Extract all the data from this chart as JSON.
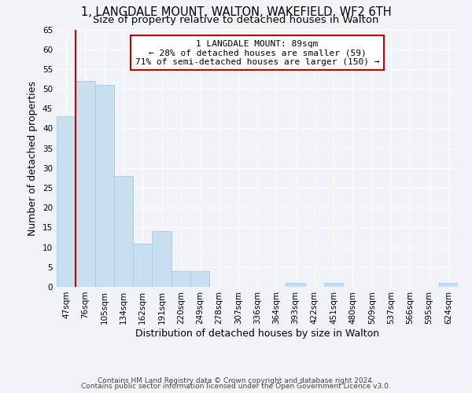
{
  "title": "1, LANGDALE MOUNT, WALTON, WAKEFIELD, WF2 6TH",
  "subtitle": "Size of property relative to detached houses in Walton",
  "xlabel": "Distribution of detached houses by size in Walton",
  "ylabel": "Number of detached properties",
  "bar_labels": [
    "47sqm",
    "76sqm",
    "105sqm",
    "134sqm",
    "162sqm",
    "191sqm",
    "220sqm",
    "249sqm",
    "278sqm",
    "307sqm",
    "336sqm",
    "364sqm",
    "393sqm",
    "422sqm",
    "451sqm",
    "480sqm",
    "509sqm",
    "537sqm",
    "566sqm",
    "595sqm",
    "624sqm"
  ],
  "bar_values": [
    43,
    52,
    51,
    28,
    11,
    14,
    4,
    4,
    0,
    0,
    0,
    0,
    1,
    0,
    1,
    0,
    0,
    0,
    0,
    0,
    1
  ],
  "bar_color": "#c8dff0",
  "bar_edge_color": "#a8c8e8",
  "highlight_line_color": "#cc0000",
  "ylim": [
    0,
    65
  ],
  "yticks": [
    0,
    5,
    10,
    15,
    20,
    25,
    30,
    35,
    40,
    45,
    50,
    55,
    60,
    65
  ],
  "annotation_title": "1 LANGDALE MOUNT: 89sqm",
  "annotation_line1": "← 28% of detached houses are smaller (59)",
  "annotation_line2": "71% of semi-detached houses are larger (150) →",
  "annotation_box_color": "#ffffff",
  "annotation_box_edge": "#cc0000",
  "footer1": "Contains HM Land Registry data © Crown copyright and database right 2024.",
  "footer2": "Contains public sector information licensed under the Open Government Licence v3.0.",
  "background_color": "#f0f4f8",
  "grid_color": "#ffffff",
  "title_fontsize": 10.5,
  "subtitle_fontsize": 9.5,
  "axis_label_fontsize": 9,
  "tick_fontsize": 7.5,
  "annotation_fontsize": 8,
  "footer_fontsize": 6.5
}
